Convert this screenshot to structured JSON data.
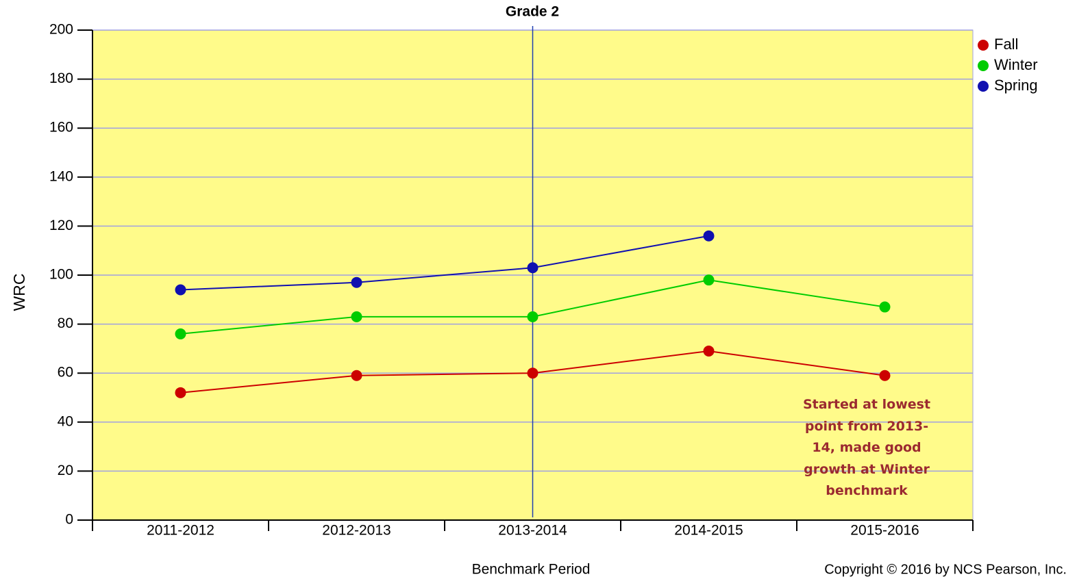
{
  "chart_data": {
    "type": "line",
    "title": "Grade 2",
    "x_label": "Benchmark Period",
    "y_label": "WRC",
    "categories": [
      "2011-2012",
      "2012-2013",
      "2013-2014",
      "2014-2015",
      "2015-2016"
    ],
    "series": [
      {
        "name": "Fall",
        "color": "#cc0000",
        "values": [
          52,
          59,
          60,
          69,
          59
        ]
      },
      {
        "name": "Winter",
        "color": "#00cc00",
        "values": [
          76,
          83,
          83,
          98,
          87
        ]
      },
      {
        "name": "Spring",
        "color": "#1010b0",
        "values": [
          94,
          97,
          103,
          116,
          null
        ]
      }
    ],
    "ylim": [
      0,
      200
    ],
    "yticks": [
      0,
      20,
      40,
      60,
      80,
      100,
      120,
      140,
      160,
      180,
      200
    ],
    "grid": true,
    "legend": "right",
    "vline_index": 2,
    "annotation": "Started at lowest point from 2013-14, made good growth at Winter benchmark",
    "copyright": "Copyright © 2016 by NCS Pearson, Inc."
  }
}
